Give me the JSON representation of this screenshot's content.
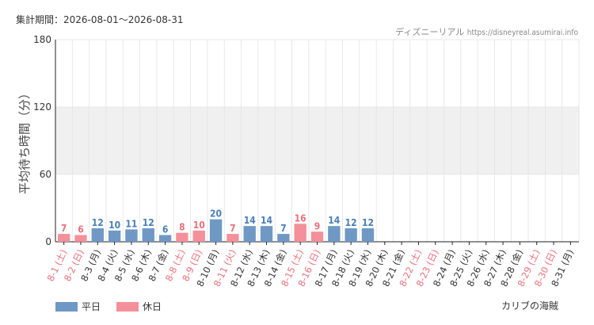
{
  "header": {
    "period_label": "集計期間：2026-08-01〜2026-08-31",
    "site_name": "ディズニーリアル",
    "site_url": "https://disneyreal.asumirai.info"
  },
  "legend": {
    "weekday_label": "平日",
    "holiday_label": "休日"
  },
  "attraction_name": "カリブの海賊",
  "colors": {
    "weekday": "#6f98c5",
    "weekday_text": "#4a7fb5",
    "holiday": "#f4909a",
    "holiday_text": "#e8707c",
    "band": "#f0f0f0",
    "grid": "#e3e3e3",
    "axis": "#222222"
  },
  "chart_data": {
    "type": "bar",
    "ylabel": "平均待ち時間（分）",
    "ylim": [
      0,
      180
    ],
    "yticks": [
      0,
      60,
      120,
      180
    ],
    "categories": [
      "8-1 (土)",
      "8-2 (日)",
      "8-3 (月)",
      "8-4 (火)",
      "8-5 (水)",
      "8-6 (木)",
      "8-7 (金)",
      "8-8 (土)",
      "8-9 (日)",
      "8-10 (月)",
      "8-11 (火)",
      "8-12 (水)",
      "8-13 (木)",
      "8-14 (金)",
      "8-15 (土)",
      "8-16 (日)",
      "8-17 (月)",
      "8-18 (火)",
      "8-19 (水)",
      "8-20 (木)",
      "8-21 (金)",
      "8-22 (土)",
      "8-23 (日)",
      "8-24 (月)",
      "8-25 (火)",
      "8-26 (水)",
      "8-27 (木)",
      "8-28 (金)",
      "8-29 (土)",
      "8-30 (日)",
      "8-31 (月)"
    ],
    "values": [
      7,
      6,
      12,
      10,
      11,
      12,
      6,
      8,
      10,
      20,
      7,
      14,
      14,
      7,
      16,
      9,
      14,
      12,
      12,
      null,
      null,
      null,
      null,
      null,
      null,
      null,
      null,
      null,
      null,
      null,
      null
    ],
    "holiday": [
      true,
      true,
      false,
      false,
      false,
      false,
      false,
      true,
      true,
      false,
      true,
      false,
      false,
      false,
      true,
      true,
      false,
      false,
      false,
      false,
      false,
      true,
      true,
      false,
      false,
      false,
      false,
      false,
      true,
      true,
      false
    ],
    "series": [
      {
        "name": "平日"
      },
      {
        "name": "休日"
      }
    ],
    "grid": true,
    "legend_position": "bottom-left"
  }
}
